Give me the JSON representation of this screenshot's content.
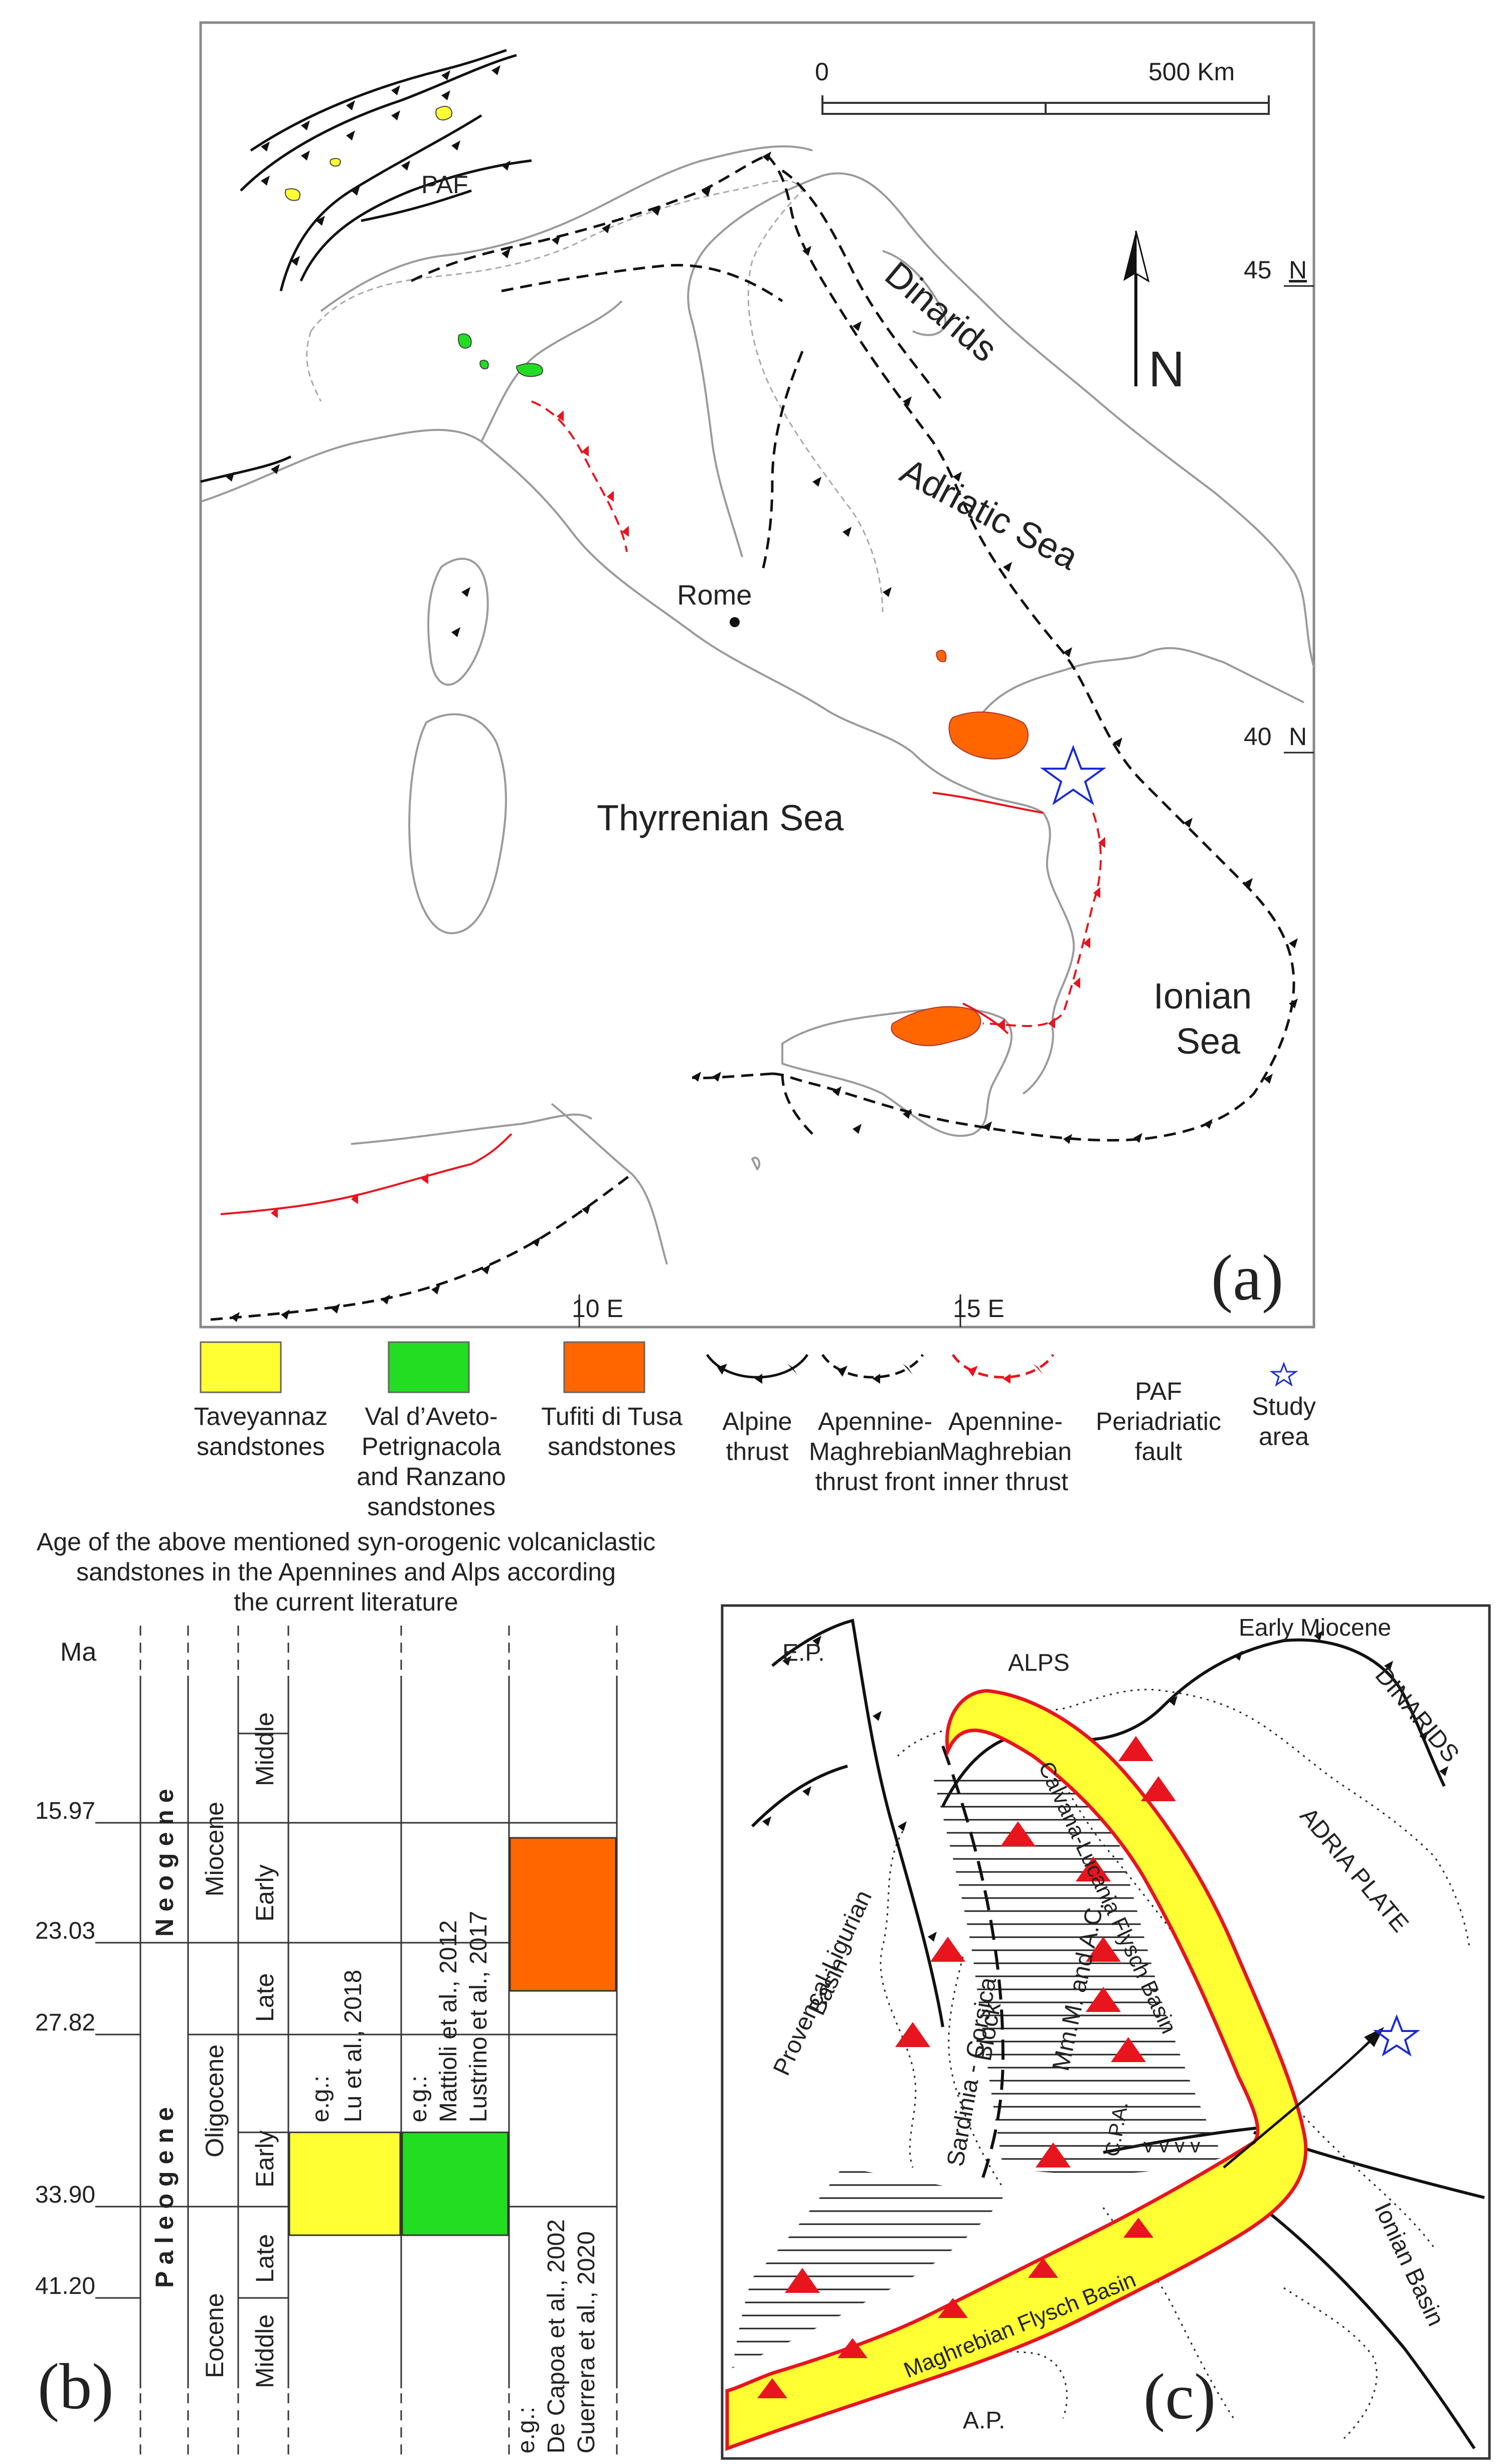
{
  "map": {
    "scale_zero": "0",
    "scale_km": "500 Km",
    "paf": "PAF",
    "lat45": "45",
    "lat45_unit": "N",
    "lat40": "40",
    "lat40_unit": "N",
    "north": "N",
    "dinarids": "Dinarids",
    "adriatic": "Adriatic Sea",
    "rome": "Rome",
    "thyrrenian": "Thyrrenian Sea",
    "ionian1": "Ionian",
    "ionian2": "Sea",
    "lon10": "10 E",
    "lon15": "15 E",
    "panel_a": "(a)"
  },
  "legend": {
    "items": [
      {
        "lines": [
          "Taveyannaz",
          "sandstones"
        ],
        "color": "#ffff33"
      },
      {
        "lines": [
          "Val d’Aveto-",
          "Petrignacola",
          "and Ranzano",
          "sandstones"
        ],
        "color": "#22dd22"
      },
      {
        "lines": [
          "Tufiti di Tusa",
          "sandstones"
        ],
        "color": "#ff6600"
      },
      {
        "lines": [
          "Alpine",
          "thrust"
        ]
      },
      {
        "lines": [
          "Apennine-",
          "Maghrebian",
          "thrust front"
        ]
      },
      {
        "lines": [
          "Apennine-",
          "Maghrebian",
          "inner thrust"
        ]
      },
      {
        "lines": [
          "Periadriatic",
          "fault"
        ],
        "abbr": "PAF"
      },
      {
        "lines": [
          "Study",
          "area"
        ]
      }
    ]
  },
  "age_caption": [
    "Age of the above mentioned syn-orogenic volcaniclastic",
    "sandstones in the Apennines and Alps according",
    "the current literature"
  ],
  "chart_b": {
    "unit": "Ma",
    "ages": [
      "15.97",
      "23.03",
      "27.82",
      "33.90",
      "41.20"
    ],
    "periods": [
      "N e o g e n e",
      "P a l e o g e n e"
    ],
    "epochs": [
      "Miocene",
      "Oligocene",
      "Eocene"
    ],
    "subepochs": [
      "Middle",
      "Early",
      "Late",
      "Early",
      "Late",
      "Middle"
    ],
    "refs": [
      [
        "e.g.:",
        "Lu et al., 2018"
      ],
      [
        "e.g.:",
        "Mattioli et al., 2012",
        "Lustrino et al., 2017"
      ],
      [
        "e.g.:",
        "De Capoa et al., 2002",
        "Guerrera et al., 2020"
      ]
    ],
    "panel_b": "(b)"
  },
  "panel_c": {
    "ep": "E.P.",
    "alps": "ALPS",
    "early_miocene": "Early Miocene",
    "dinarids": "DINARIDS",
    "adria": "ADRIA PLATE",
    "provencal": [
      "Provençal-Ligurian",
      "Basin"
    ],
    "sardinia": [
      "Sardinia - Corsica",
      "Block"
    ],
    "mmm": "Mm.M. and A.C.",
    "calvana": "Calvana-Lucania Flysch Basin",
    "cpa": "C.P.A.",
    "maghrebian": "Maghrebian Flysch Basin",
    "ap": "A.P.",
    "ionian_basin": "Ionian Basin",
    "panel_c": "(c)"
  },
  "colors": {
    "yellow": "#ffff33",
    "green": "#22dd22",
    "orange": "#ff6600",
    "red": "#e8141e",
    "blue": "#1a2bd6"
  }
}
